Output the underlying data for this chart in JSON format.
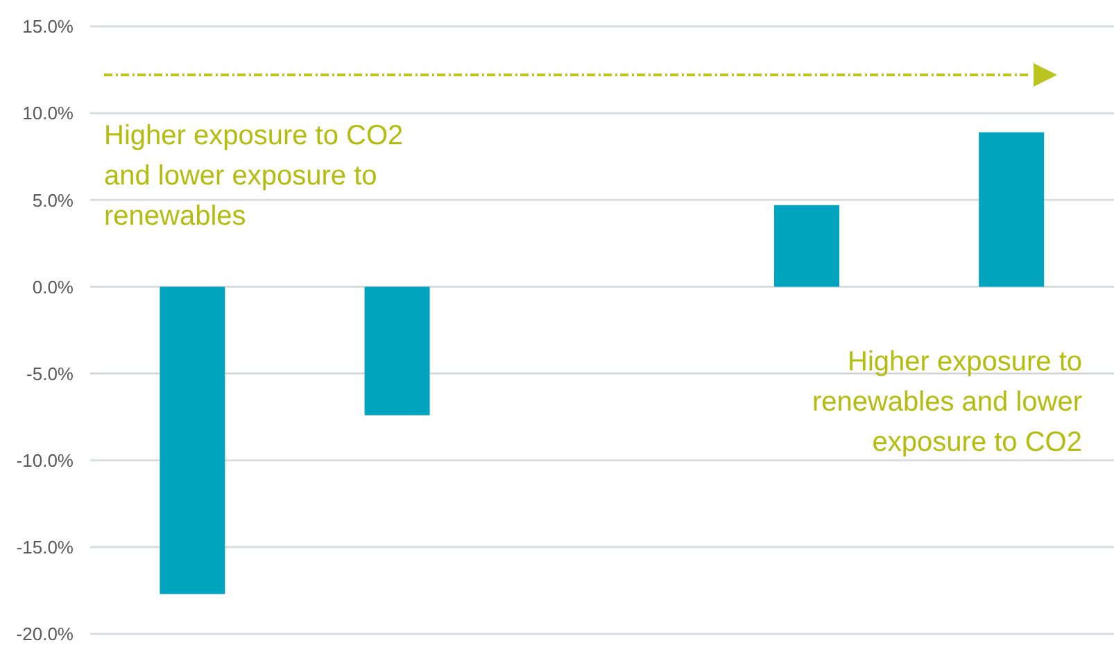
{
  "chart_data": {
    "type": "bar",
    "categories": [
      null,
      null,
      null,
      null,
      null
    ],
    "values": [
      -17.7,
      -7.4,
      null,
      4.7,
      8.9
    ],
    "color": "#00a4bf",
    "ylim": [
      -20,
      15
    ],
    "yticks": [
      {
        "value": -20,
        "label": "-20.0%"
      },
      {
        "value": -15,
        "label": "-15.0%"
      },
      {
        "value": -10,
        "label": "-10.0%"
      },
      {
        "value": -5,
        "label": "-5.0%"
      },
      {
        "value": 0,
        "label": "0.0%"
      },
      {
        "value": 5,
        "label": "5.0%"
      },
      {
        "value": 10,
        "label": "10.0%"
      },
      {
        "value": 15,
        "label": "15.0%"
      }
    ],
    "grid": "y",
    "tick_labels": "y",
    "annotations": [
      "Higher exposure to CO2 and lower exposure to renewables",
      "Higher exposure to renewables and lower exposure to CO2"
    ]
  }
}
